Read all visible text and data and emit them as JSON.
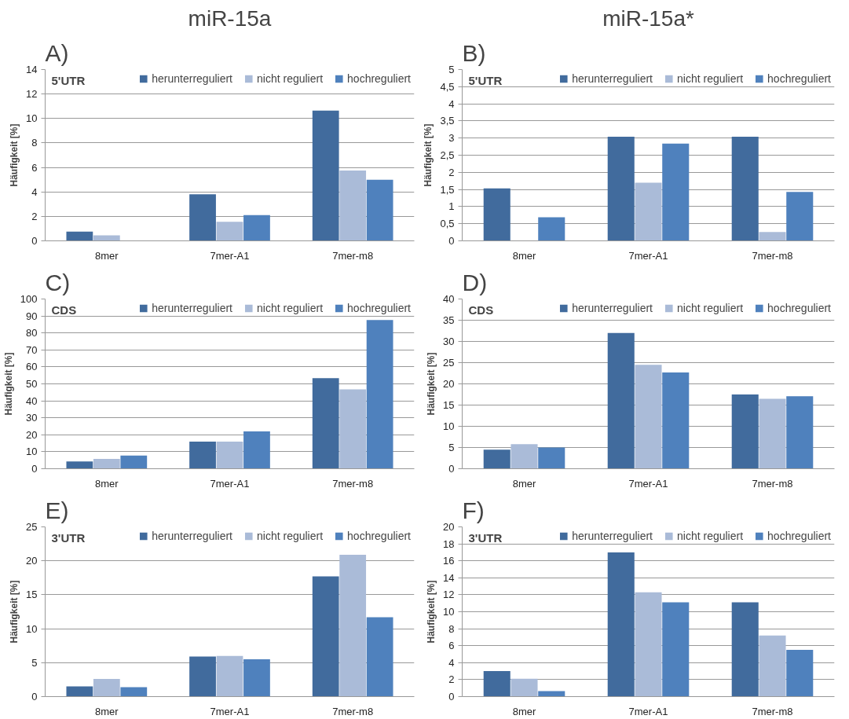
{
  "chart_data": [
    {
      "type": "bar",
      "title": "A)",
      "subtitle": "miR-15a",
      "ylabel": "Häufigkeit [%]",
      "annotations": [
        "5'UTR"
      ],
      "categories": [
        "8mer",
        "7mer-A1",
        "7mer-m8"
      ],
      "ylim": [
        0,
        14
      ],
      "yticks": [
        0,
        2,
        4,
        6,
        8,
        10,
        12,
        14
      ],
      "grid": "y",
      "legend": "top",
      "series": [
        {
          "name": "herunterreguliert",
          "color": "#416b9d",
          "values": [
            0.75,
            3.8,
            10.65
          ]
        },
        {
          "name": "nicht reguliert",
          "color": "#aabbd8",
          "values": [
            0.45,
            1.55,
            5.75
          ]
        },
        {
          "name": "hochreguliert",
          "color": "#4f81bd",
          "values": [
            0,
            2.1,
            5.0
          ]
        }
      ]
    },
    {
      "type": "bar",
      "title": "B)",
      "subtitle": "miR-15a*",
      "ylabel": "Häufigkeit [%]",
      "annotations": [
        "5'UTR"
      ],
      "categories": [
        "8mer",
        "7mer-A1",
        "7mer-m8"
      ],
      "ylim": [
        0,
        5
      ],
      "yticks": [
        0,
        {
          "value": 0.5,
          "label": "0,5"
        },
        1,
        {
          "value": 1.5,
          "label": "1,5"
        },
        2,
        {
          "value": 2.5,
          "label": "2,5"
        },
        3,
        {
          "value": 3.5,
          "label": "3,5"
        },
        4,
        {
          "value": 4.5,
          "label": "4,5"
        },
        5
      ],
      "grid": "y",
      "legend": "top",
      "series": [
        {
          "name": "herunterreguliert",
          "color": "#416b9d",
          "values": [
            1.53,
            3.04,
            3.04
          ]
        },
        {
          "name": "nicht reguliert",
          "color": "#aabbd8",
          "values": [
            0,
            1.7,
            0.26
          ]
        },
        {
          "name": "hochreguliert",
          "color": "#4f81bd",
          "values": [
            0.69,
            2.84,
            1.43
          ]
        }
      ]
    },
    {
      "type": "bar",
      "title": "C)",
      "ylabel": "Häufigkeit [%]",
      "annotations": [
        "CDS"
      ],
      "categories": [
        "8mer",
        "7mer-A1",
        "7mer-m8"
      ],
      "ylim": [
        0,
        100
      ],
      "yticks": [
        0,
        10,
        20,
        30,
        40,
        50,
        60,
        70,
        80,
        90,
        100
      ],
      "grid": "y",
      "legend": "top",
      "series": [
        {
          "name": "herunterreguliert",
          "color": "#416b9d",
          "values": [
            4.3,
            16,
            53.3
          ]
        },
        {
          "name": "nicht reguliert",
          "color": "#aabbd8",
          "values": [
            5.8,
            16,
            46.8
          ]
        },
        {
          "name": "hochreguliert",
          "color": "#4f81bd",
          "values": [
            7.8,
            22,
            87.6
          ]
        }
      ]
    },
    {
      "type": "bar",
      "title": "D)",
      "ylabel": "Häufigkeit [%]",
      "annotations": [
        "CDS"
      ],
      "categories": [
        "8mer",
        "7mer-A1",
        "7mer-m8"
      ],
      "ylim": [
        0,
        40
      ],
      "yticks": [
        0,
        5,
        10,
        15,
        20,
        25,
        30,
        35,
        40
      ],
      "grid": "y",
      "legend": "top",
      "series": [
        {
          "name": "herunterreguliert",
          "color": "#416b9d",
          "values": [
            4.5,
            32,
            17.5
          ]
        },
        {
          "name": "nicht reguliert",
          "color": "#aabbd8",
          "values": [
            5.8,
            24.5,
            16.5
          ]
        },
        {
          "name": "hochreguliert",
          "color": "#4f81bd",
          "values": [
            5.0,
            22.7,
            17.1
          ]
        }
      ]
    },
    {
      "type": "bar",
      "title": "E)",
      "ylabel": "Häufigkeit [%]",
      "annotations": [
        "3'UTR"
      ],
      "categories": [
        "8mer",
        "7mer-A1",
        "7mer-m8"
      ],
      "ylim": [
        0,
        25
      ],
      "yticks": [
        0,
        5,
        10,
        15,
        20,
        25
      ],
      "grid": "y",
      "legend": "top",
      "series": [
        {
          "name": "herunterreguliert",
          "color": "#416b9d",
          "values": [
            1.5,
            5.9,
            17.7
          ]
        },
        {
          "name": "nicht reguliert",
          "color": "#aabbd8",
          "values": [
            2.6,
            6.0,
            20.9
          ]
        },
        {
          "name": "hochreguliert",
          "color": "#4f81bd",
          "values": [
            1.4,
            5.5,
            11.7
          ]
        }
      ]
    },
    {
      "type": "bar",
      "title": "F)",
      "ylabel": "Häufigkeit [%]",
      "annotations": [
        "3'UTR"
      ],
      "categories": [
        "8mer",
        "7mer-A1",
        "7mer-m8"
      ],
      "ylim": [
        0,
        20
      ],
      "yticks": [
        0,
        2,
        4,
        6,
        8,
        10,
        12,
        14,
        16,
        18,
        20
      ],
      "grid": "y",
      "legend": "top",
      "series": [
        {
          "name": "herunterreguliert",
          "color": "#416b9d",
          "values": [
            3.0,
            17.0,
            11.1
          ]
        },
        {
          "name": "nicht reguliert",
          "color": "#aabbd8",
          "values": [
            2.1,
            12.3,
            7.2
          ]
        },
        {
          "name": "hochreguliert",
          "color": "#4f81bd",
          "values": [
            0.65,
            11.1,
            5.5
          ]
        }
      ]
    }
  ]
}
